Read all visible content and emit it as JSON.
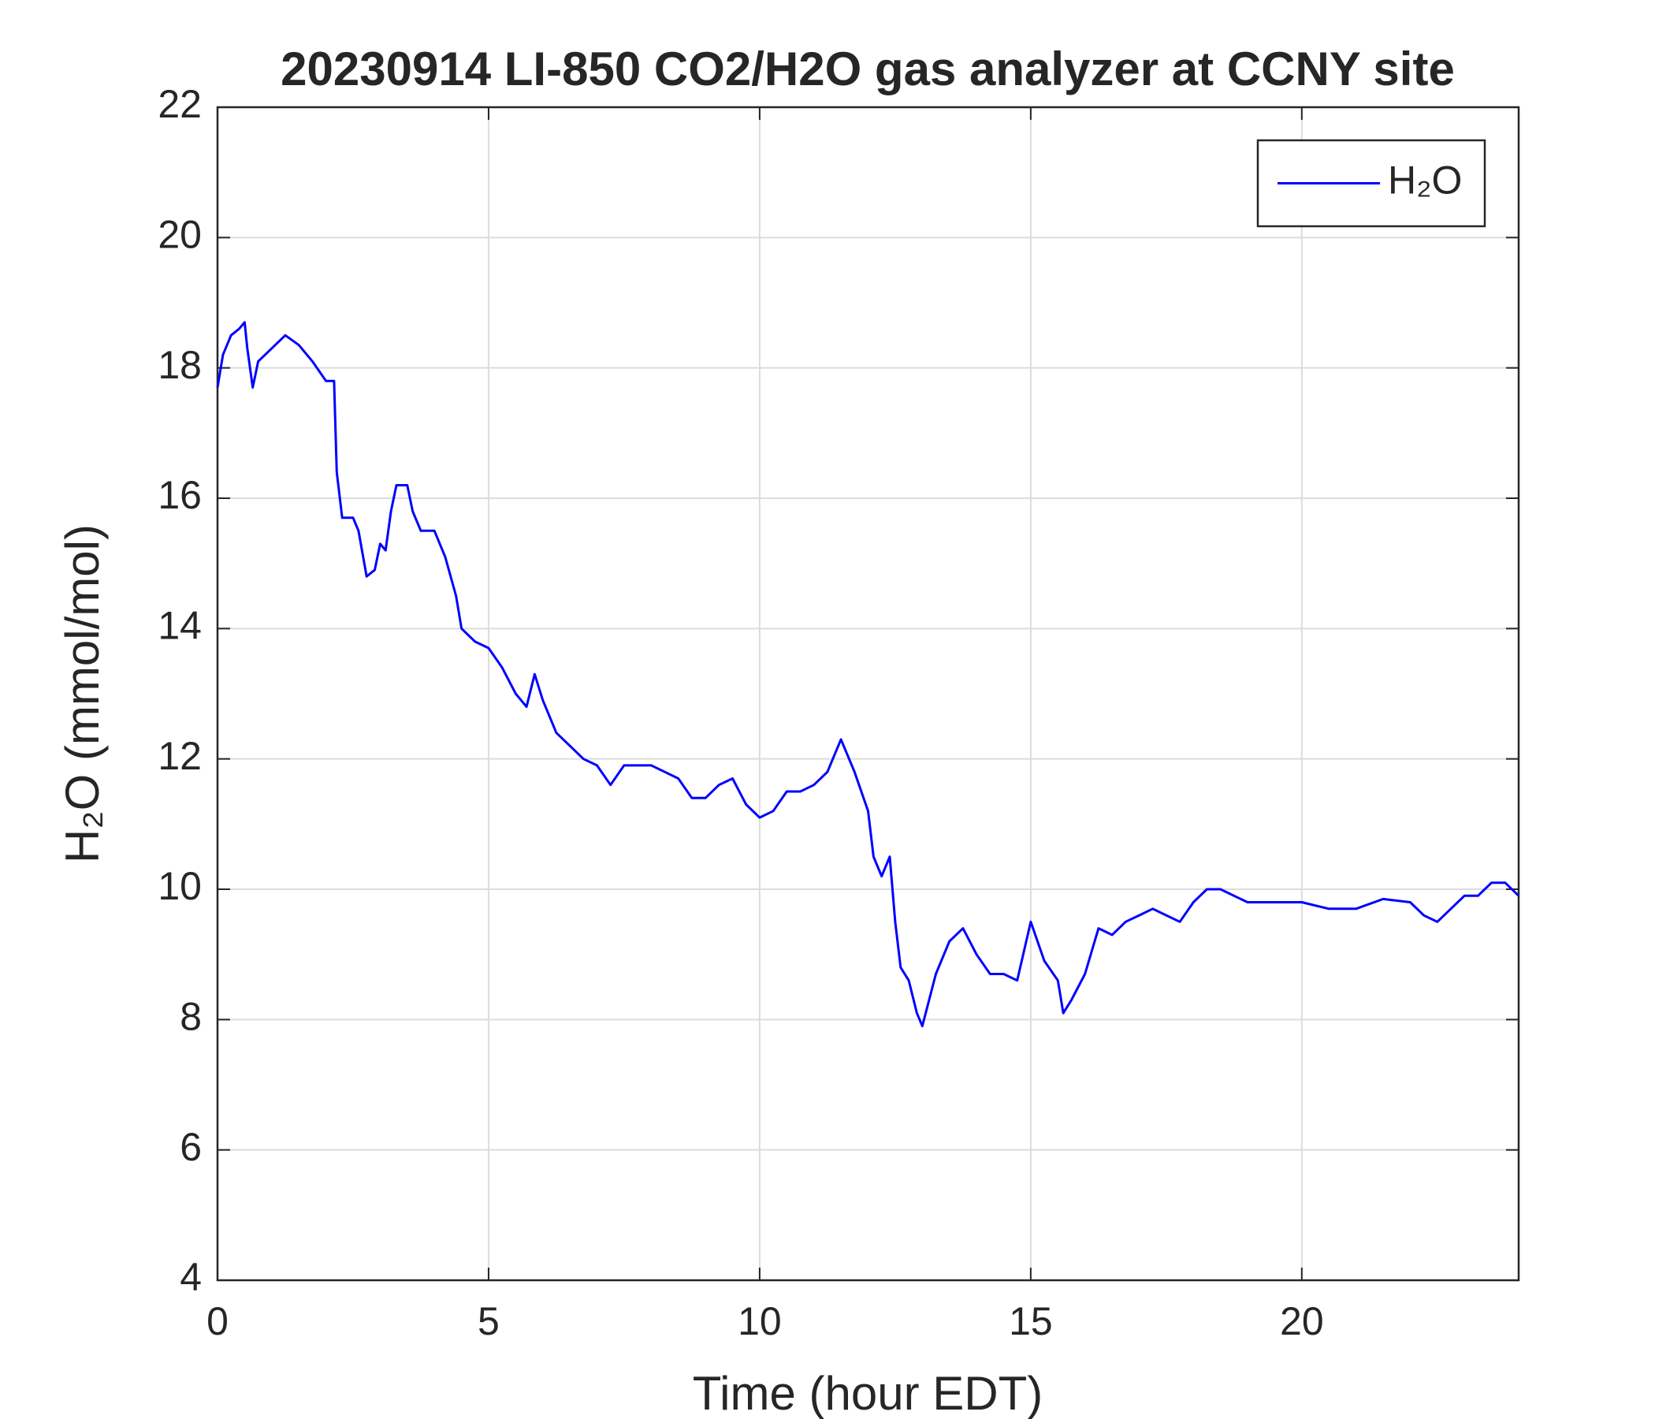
{
  "chart_data": {
    "type": "line",
    "title": "20230914 LI-850 CO2/H2O gas analyzer at CCNY site",
    "xlabel": "Time (hour EDT)",
    "ylabel": "H₂O (mmol/mol)",
    "x": [
      0,
      0.1,
      0.25,
      0.4,
      0.5,
      0.55,
      0.65,
      0.75,
      1,
      1.25,
      1.5,
      1.75,
      2,
      2.15,
      2.2,
      2.3,
      2.5,
      2.6,
      2.75,
      2.9,
      3,
      3.1,
      3.2,
      3.3,
      3.5,
      3.6,
      3.75,
      4,
      4.2,
      4.4,
      4.5,
      4.75,
      5,
      5.25,
      5.5,
      5.7,
      5.85,
      6,
      6.25,
      6.5,
      6.75,
      7,
      7.25,
      7.5,
      7.75,
      8,
      8.25,
      8.5,
      8.75,
      9,
      9.25,
      9.5,
      9.75,
      10,
      10.25,
      10.5,
      10.75,
      11,
      11.25,
      11.4,
      11.5,
      11.75,
      12,
      12.1,
      12.25,
      12.4,
      12.5,
      12.6,
      12.75,
      12.9,
      13,
      13.25,
      13.5,
      13.75,
      14,
      14.25,
      14.5,
      14.75,
      15,
      15.25,
      15.5,
      15.6,
      15.75,
      16,
      16.25,
      16.5,
      16.75,
      17,
      17.25,
      17.5,
      17.75,
      18,
      18.25,
      18.5,
      18.75,
      19,
      19.5,
      20,
      20.5,
      21,
      21.5,
      22,
      22.25,
      22.5,
      22.75,
      23,
      23.25,
      23.5,
      23.75,
      24
    ],
    "series": [
      {
        "name": "H₂O",
        "color": "#0000ff",
        "values": [
          17.7,
          18.2,
          18.5,
          18.6,
          18.7,
          18.3,
          17.7,
          18.1,
          18.3,
          18.5,
          18.35,
          18.1,
          17.8,
          17.8,
          16.4,
          15.7,
          15.7,
          15.5,
          14.8,
          14.9,
          15.3,
          15.2,
          15.8,
          16.2,
          16.2,
          15.8,
          15.5,
          15.5,
          15.1,
          14.5,
          14.0,
          13.8,
          13.7,
          13.4,
          13.0,
          12.8,
          13.3,
          12.9,
          12.4,
          12.2,
          12.0,
          11.9,
          11.6,
          11.9,
          11.9,
          11.9,
          11.8,
          11.7,
          11.4,
          11.4,
          11.6,
          11.7,
          11.3,
          11.1,
          11.2,
          11.5,
          11.5,
          11.6,
          11.8,
          12.1,
          12.3,
          11.8,
          11.2,
          10.5,
          10.2,
          10.5,
          9.5,
          8.8,
          8.6,
          8.1,
          7.9,
          8.7,
          9.2,
          9.4,
          9.0,
          8.7,
          8.7,
          8.6,
          9.5,
          8.9,
          8.6,
          8.1,
          8.3,
          8.7,
          9.4,
          9.3,
          9.5,
          9.6,
          9.7,
          9.6,
          9.5,
          9.8,
          10.0,
          10.0,
          9.9,
          9.8,
          9.8,
          9.8,
          9.7,
          9.7,
          9.85,
          9.8,
          9.6,
          9.5,
          9.7,
          9.9,
          9.9,
          10.1,
          10.1,
          9.9
        ]
      }
    ],
    "xlim": [
      0,
      24
    ],
    "xticks": [
      0,
      5,
      10,
      15,
      20
    ],
    "ylim": [
      4,
      22
    ],
    "yticks": [
      4,
      6,
      8,
      10,
      12,
      14,
      16,
      18,
      20,
      22
    ],
    "grid": true,
    "legend": "northeast"
  }
}
